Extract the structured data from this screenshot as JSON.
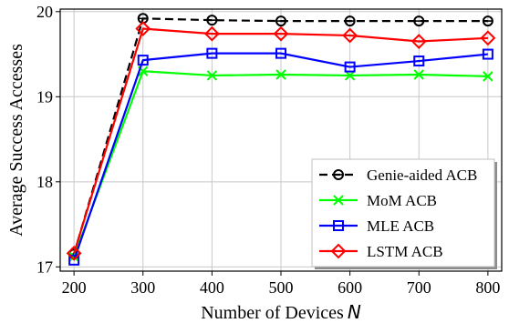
{
  "chart_data": {
    "type": "line",
    "title": "",
    "xlabel": "Number of Devices",
    "xlabel_var": "N",
    "ylabel": "Average Success Accesses",
    "x": [
      200,
      300,
      400,
      500,
      600,
      700,
      800
    ],
    "xlim": [
      180,
      820
    ],
    "ylim": [
      16.95,
      20.03
    ],
    "xticks": [
      200,
      300,
      400,
      500,
      600,
      700,
      800
    ],
    "yticks": [
      17,
      18,
      19,
      20
    ],
    "grid": true,
    "legend_position": "bottom-right",
    "series": [
      {
        "name": "Genie-aided ACB",
        "color": "#000000",
        "dash": "dashed",
        "marker": "theta-circle",
        "values": [
          17.15,
          19.92,
          19.9,
          19.89,
          19.89,
          19.89,
          19.89
        ]
      },
      {
        "name": "MoM ACB",
        "color": "#00ff00",
        "dash": "solid",
        "marker": "x",
        "values": [
          17.12,
          19.3,
          19.25,
          19.26,
          19.25,
          19.26,
          19.24
        ]
      },
      {
        "name": "MLE ACB",
        "color": "#0000ff",
        "dash": "solid",
        "marker": "square",
        "values": [
          17.08,
          19.43,
          19.51,
          19.51,
          19.35,
          19.42,
          19.5
        ]
      },
      {
        "name": "LSTM ACB",
        "color": "#ff0000",
        "dash": "solid",
        "marker": "diamond",
        "values": [
          17.16,
          19.8,
          19.74,
          19.74,
          19.72,
          19.65,
          19.69
        ]
      }
    ]
  }
}
